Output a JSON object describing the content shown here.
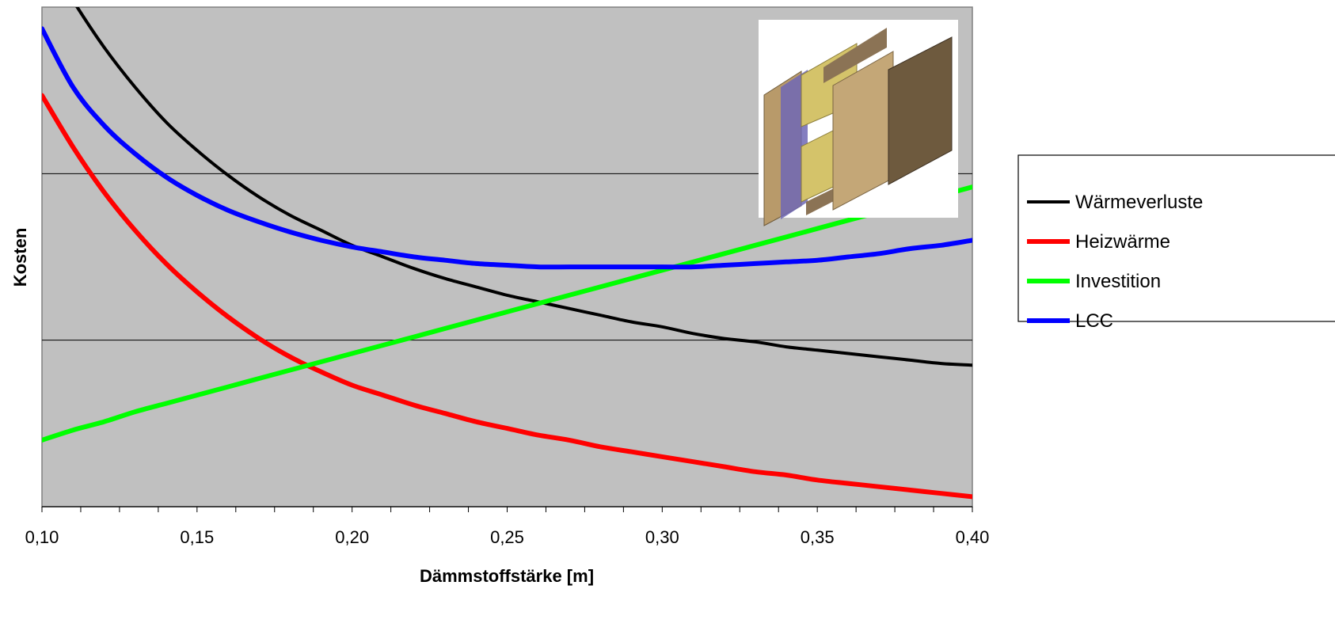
{
  "chart_data": {
    "type": "line",
    "title": "",
    "xlabel": "Dämmstoffstärke [m]",
    "ylabel": "Kosten",
    "xlim": [
      0.1,
      0.4
    ],
    "ylim": [
      0,
      3
    ],
    "x_ticks": [
      "0,10",
      "0,15",
      "0,20",
      "0,25",
      "0,30",
      "0,35",
      "0,40"
    ],
    "y_tick_labels_shown": false,
    "grid": "horizontal",
    "plot_background": "#c0c0c0",
    "legend_position": "right",
    "inset_image": "timber-frame-wall-insulation-layers",
    "x": [
      0.1,
      0.11,
      0.12,
      0.13,
      0.14,
      0.15,
      0.16,
      0.17,
      0.18,
      0.19,
      0.2,
      0.21,
      0.22,
      0.23,
      0.24,
      0.25,
      0.26,
      0.27,
      0.28,
      0.29,
      0.3,
      0.31,
      0.32,
      0.33,
      0.34,
      0.35,
      0.36,
      0.37,
      0.38,
      0.39,
      0.4
    ],
    "series": [
      {
        "name": "Wärmeverluste",
        "color": "#000000",
        "values": [
          3.35,
          3.04,
          2.76,
          2.52,
          2.31,
          2.14,
          1.99,
          1.86,
          1.75,
          1.66,
          1.57,
          1.5,
          1.43,
          1.37,
          1.32,
          1.27,
          1.23,
          1.19,
          1.15,
          1.11,
          1.08,
          1.04,
          1.01,
          0.99,
          0.96,
          0.94,
          0.92,
          0.9,
          0.88,
          0.86,
          0.85
        ]
      },
      {
        "name": "Heizwärme",
        "color": "#ff0000",
        "values": [
          2.47,
          2.16,
          1.89,
          1.66,
          1.46,
          1.29,
          1.14,
          1.01,
          0.9,
          0.81,
          0.73,
          0.67,
          0.61,
          0.56,
          0.51,
          0.47,
          0.43,
          0.4,
          0.36,
          0.33,
          0.3,
          0.27,
          0.24,
          0.21,
          0.19,
          0.16,
          0.14,
          0.12,
          0.1,
          0.08,
          0.06
        ]
      },
      {
        "name": "Investition",
        "color": "#00ff00",
        "values": [
          0.4,
          0.46,
          0.51,
          0.57,
          0.62,
          0.67,
          0.72,
          0.77,
          0.82,
          0.87,
          0.92,
          0.97,
          1.02,
          1.07,
          1.12,
          1.17,
          1.22,
          1.27,
          1.32,
          1.37,
          1.42,
          1.47,
          1.52,
          1.57,
          1.62,
          1.67,
          1.72,
          1.77,
          1.82,
          1.87,
          1.92
        ]
      },
      {
        "name": "LCC",
        "color": "#0000ff",
        "values": [
          2.87,
          2.52,
          2.29,
          2.12,
          1.98,
          1.87,
          1.78,
          1.71,
          1.65,
          1.6,
          1.56,
          1.53,
          1.5,
          1.48,
          1.46,
          1.45,
          1.44,
          1.44,
          1.44,
          1.44,
          1.44,
          1.44,
          1.45,
          1.46,
          1.47,
          1.48,
          1.5,
          1.52,
          1.55,
          1.57,
          1.6
        ]
      }
    ]
  }
}
